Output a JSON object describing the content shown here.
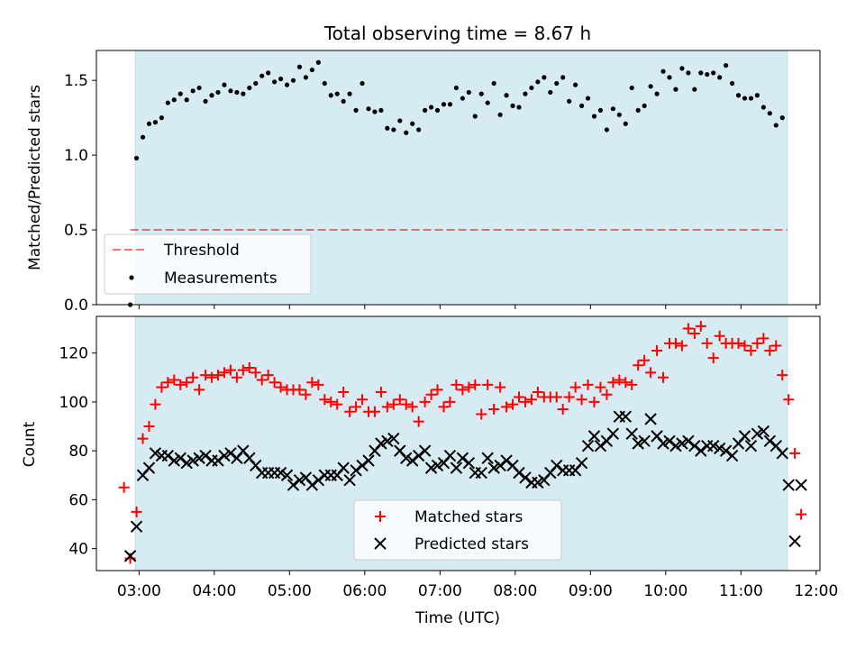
{
  "figure_title": "Total observing time = 8.67 h",
  "xlabel": "Time (UTC)",
  "x_ticks": [
    "03:00",
    "04:00",
    "05:00",
    "06:00",
    "07:00",
    "08:00",
    "09:00",
    "10:00",
    "11:00",
    "12:00"
  ],
  "colors": {
    "span": "#add8e6",
    "threshold": "#ff0000",
    "measurements": "#000000",
    "matched": "#ff0000",
    "predicted": "#000000"
  },
  "chart_data": [
    {
      "type": "scatter",
      "panel": "top",
      "title": "Total observing time = 8.67 h",
      "xlabel": "",
      "ylabel": "Matched/Predicted stars",
      "xlim": [
        "02:26",
        "12:03"
      ],
      "ylim": [
        0,
        1.7
      ],
      "yticks": [
        "0.0",
        "0.5",
        "1.0",
        "1.5"
      ],
      "shaded_span": [
        "02:57",
        "11:37"
      ],
      "legend": {
        "placement": "lower-left",
        "entries": [
          {
            "label": "Threshold",
            "kind": "dashed-line",
            "color": "#ff0000"
          },
          {
            "label": "Measurements",
            "kind": "dot",
            "color": "#000000"
          }
        ]
      },
      "threshold": {
        "name": "Threshold",
        "y": 0.5,
        "x_range": [
          "02:53",
          "11:37"
        ]
      },
      "series": [
        {
          "name": "Measurements",
          "marker": "dot",
          "x": [
            "02:53",
            "02:58",
            "03:03",
            "03:08",
            "03:13",
            "03:18",
            "03:23",
            "03:28",
            "03:33",
            "03:38",
            "03:43",
            "03:48",
            "03:53",
            "03:58",
            "04:03",
            "04:08",
            "04:13",
            "04:18",
            "04:23",
            "04:28",
            "04:33",
            "04:38",
            "04:43",
            "04:48",
            "04:53",
            "04:58",
            "05:03",
            "05:08",
            "05:13",
            "05:18",
            "05:23",
            "05:28",
            "05:33",
            "05:38",
            "05:43",
            "05:48",
            "05:53",
            "05:58",
            "06:03",
            "06:08",
            "06:13",
            "06:18",
            "06:23",
            "06:28",
            "06:33",
            "06:38",
            "06:43",
            "06:48",
            "06:53",
            "06:58",
            "07:03",
            "07:08",
            "07:13",
            "07:18",
            "07:23",
            "07:28",
            "07:33",
            "07:38",
            "07:43",
            "07:48",
            "07:53",
            "07:58",
            "08:03",
            "08:08",
            "08:13",
            "08:18",
            "08:23",
            "08:28",
            "08:33",
            "08:38",
            "08:43",
            "08:48",
            "08:53",
            "08:58",
            "09:03",
            "09:08",
            "09:13",
            "09:18",
            "09:23",
            "09:28",
            "09:33",
            "09:38",
            "09:43",
            "09:48",
            "09:53",
            "09:58",
            "10:03",
            "10:08",
            "10:13",
            "10:18",
            "10:23",
            "10:28",
            "10:33",
            "10:38",
            "10:43",
            "10:48",
            "10:53",
            "10:58",
            "11:03",
            "11:08",
            "11:13",
            "11:18",
            "11:23",
            "11:28",
            "11:33"
          ],
          "values": [
            0.0,
            0.98,
            1.12,
            1.21,
            1.22,
            1.25,
            1.35,
            1.37,
            1.41,
            1.37,
            1.43,
            1.45,
            1.36,
            1.4,
            1.42,
            1.47,
            1.43,
            1.42,
            1.41,
            1.45,
            1.48,
            1.53,
            1.55,
            1.49,
            1.51,
            1.47,
            1.5,
            1.59,
            1.52,
            1.57,
            1.62,
            1.48,
            1.4,
            1.41,
            1.36,
            1.41,
            1.3,
            1.48,
            1.31,
            1.29,
            1.3,
            1.18,
            1.17,
            1.23,
            1.15,
            1.21,
            1.17,
            1.3,
            1.32,
            1.3,
            1.34,
            1.34,
            1.45,
            1.38,
            1.42,
            1.26,
            1.41,
            1.35,
            1.48,
            1.27,
            1.4,
            1.33,
            1.32,
            1.41,
            1.45,
            1.49,
            1.52,
            1.42,
            1.48,
            1.52,
            1.36,
            1.47,
            1.33,
            1.38,
            1.26,
            1.3,
            1.17,
            1.31,
            1.27,
            1.21,
            1.45,
            1.3,
            1.33,
            1.46,
            1.41,
            1.56,
            1.52,
            1.44,
            1.58,
            1.55,
            1.44,
            1.55,
            1.54,
            1.55,
            1.52,
            1.6,
            1.48,
            1.4,
            1.38,
            1.38,
            1.4,
            1.32,
            1.28,
            1.2,
            1.25
          ]
        }
      ]
    },
    {
      "type": "scatter",
      "panel": "bottom",
      "xlabel": "Time (UTC)",
      "ylabel": "Count",
      "xlim": [
        "02:26",
        "12:03"
      ],
      "ylim": [
        31,
        135
      ],
      "yticks": [
        "40",
        "60",
        "80",
        "100",
        "120"
      ],
      "shaded_span": [
        "02:57",
        "11:37"
      ],
      "legend": {
        "placement": "lower-center",
        "entries": [
          {
            "label": "Matched stars",
            "kind": "plus",
            "color": "#ff0000"
          },
          {
            "label": "Predicted stars",
            "kind": "x",
            "color": "#000000"
          }
        ]
      },
      "series": [
        {
          "name": "Matched stars",
          "marker": "plus",
          "color": "#ff0000",
          "x": [
            "02:48",
            "02:53",
            "02:58",
            "03:03",
            "03:08",
            "03:13",
            "03:18",
            "03:23",
            "03:28",
            "03:33",
            "03:38",
            "03:43",
            "03:48",
            "03:53",
            "03:58",
            "04:03",
            "04:08",
            "04:13",
            "04:18",
            "04:23",
            "04:28",
            "04:33",
            "04:38",
            "04:43",
            "04:48",
            "04:53",
            "04:58",
            "05:03",
            "05:08",
            "05:13",
            "05:18",
            "05:23",
            "05:28",
            "05:33",
            "05:38",
            "05:43",
            "05:48",
            "05:53",
            "05:58",
            "06:03",
            "06:08",
            "06:13",
            "06:18",
            "06:23",
            "06:28",
            "06:33",
            "06:38",
            "06:43",
            "06:48",
            "06:53",
            "06:58",
            "07:03",
            "07:08",
            "07:13",
            "07:18",
            "07:23",
            "07:28",
            "07:33",
            "07:38",
            "07:43",
            "07:48",
            "07:53",
            "07:58",
            "08:03",
            "08:08",
            "08:13",
            "08:18",
            "08:23",
            "08:28",
            "08:33",
            "08:38",
            "08:43",
            "08:48",
            "08:53",
            "08:58",
            "09:03",
            "09:08",
            "09:13",
            "09:18",
            "09:23",
            "09:28",
            "09:33",
            "09:38",
            "09:43",
            "09:48",
            "09:53",
            "09:58",
            "10:03",
            "10:08",
            "10:13",
            "10:18",
            "10:23",
            "10:28",
            "10:33",
            "10:38",
            "10:43",
            "10:48",
            "10:53",
            "10:58",
            "11:03",
            "11:08",
            "11:13",
            "11:18",
            "11:23",
            "11:28",
            "11:33",
            "11:38",
            "11:43",
            "11:48"
          ],
          "values": [
            65,
            36,
            55,
            85,
            90,
            99,
            106,
            108,
            109,
            107,
            108,
            110,
            105,
            111,
            110,
            111,
            112,
            113,
            110,
            113,
            114,
            112,
            109,
            111,
            108,
            106,
            105,
            105,
            105,
            103,
            108,
            107,
            101,
            100,
            99,
            104,
            96,
            98,
            101,
            96,
            96,
            104,
            98,
            99,
            101,
            99,
            98,
            92,
            100,
            103,
            105,
            98,
            100,
            107,
            105,
            106,
            107,
            95,
            107,
            97,
            106,
            98,
            99,
            102,
            100,
            101,
            104,
            102,
            102,
            102,
            97,
            102,
            106,
            101,
            107,
            100,
            106,
            103,
            108,
            109,
            108,
            107,
            115,
            117,
            112,
            121,
            110,
            124,
            124,
            123,
            130,
            128,
            131,
            124,
            118,
            127,
            124,
            124,
            124,
            123,
            121,
            124,
            126,
            121,
            123,
            111,
            101,
            79,
            54
          ]
        },
        {
          "name": "Predicted stars",
          "marker": "x",
          "color": "#000000",
          "x": [
            "02:53",
            "02:58",
            "03:03",
            "03:08",
            "03:13",
            "03:18",
            "03:23",
            "03:28",
            "03:33",
            "03:38",
            "03:43",
            "03:48",
            "03:53",
            "03:58",
            "04:03",
            "04:08",
            "04:13",
            "04:18",
            "04:23",
            "04:28",
            "04:33",
            "04:38",
            "04:43",
            "04:48",
            "04:53",
            "04:58",
            "05:03",
            "05:08",
            "05:13",
            "05:18",
            "05:23",
            "05:28",
            "05:33",
            "05:38",
            "05:43",
            "05:48",
            "05:53",
            "05:58",
            "06:03",
            "06:08",
            "06:13",
            "06:18",
            "06:23",
            "06:28",
            "06:33",
            "06:38",
            "06:43",
            "06:48",
            "06:53",
            "06:58",
            "07:03",
            "07:08",
            "07:13",
            "07:18",
            "07:23",
            "07:28",
            "07:33",
            "07:38",
            "07:43",
            "07:48",
            "07:53",
            "07:58",
            "08:03",
            "08:08",
            "08:13",
            "08:18",
            "08:23",
            "08:28",
            "08:33",
            "08:38",
            "08:43",
            "08:48",
            "08:53",
            "08:58",
            "09:03",
            "09:08",
            "09:13",
            "09:18",
            "09:23",
            "09:28",
            "09:33",
            "09:38",
            "09:43",
            "09:48",
            "09:53",
            "09:58",
            "10:03",
            "10:08",
            "10:13",
            "10:18",
            "10:23",
            "10:28",
            "10:33",
            "10:38",
            "10:43",
            "10:48",
            "10:53",
            "10:58",
            "11:03",
            "11:08",
            "11:13",
            "11:18",
            "11:23",
            "11:28",
            "11:33",
            "11:38",
            "11:43",
            "11:48"
          ],
          "values": [
            37,
            49,
            70,
            73,
            79,
            78,
            78,
            76,
            77,
            75,
            76,
            77,
            78,
            76,
            76,
            78,
            79,
            77,
            80,
            77,
            74,
            71,
            71,
            71,
            71,
            70,
            66,
            68,
            69,
            66,
            68,
            70,
            70,
            70,
            73,
            68,
            72,
            74,
            76,
            80,
            83,
            84,
            85,
            80,
            77,
            76,
            78,
            80,
            73,
            74,
            75,
            78,
            73,
            77,
            75,
            71,
            71,
            77,
            73,
            74,
            76,
            74,
            71,
            69,
            67,
            67,
            68,
            71,
            74,
            72,
            72,
            72,
            75,
            82,
            86,
            82,
            84,
            87,
            94,
            94,
            87,
            83,
            84,
            93,
            86,
            83,
            84,
            82,
            83,
            84,
            82,
            80,
            82,
            82,
            81,
            80,
            78,
            83,
            86,
            82,
            87,
            88,
            84,
            82,
            79,
            66,
            43,
            66
          ]
        }
      ]
    }
  ]
}
